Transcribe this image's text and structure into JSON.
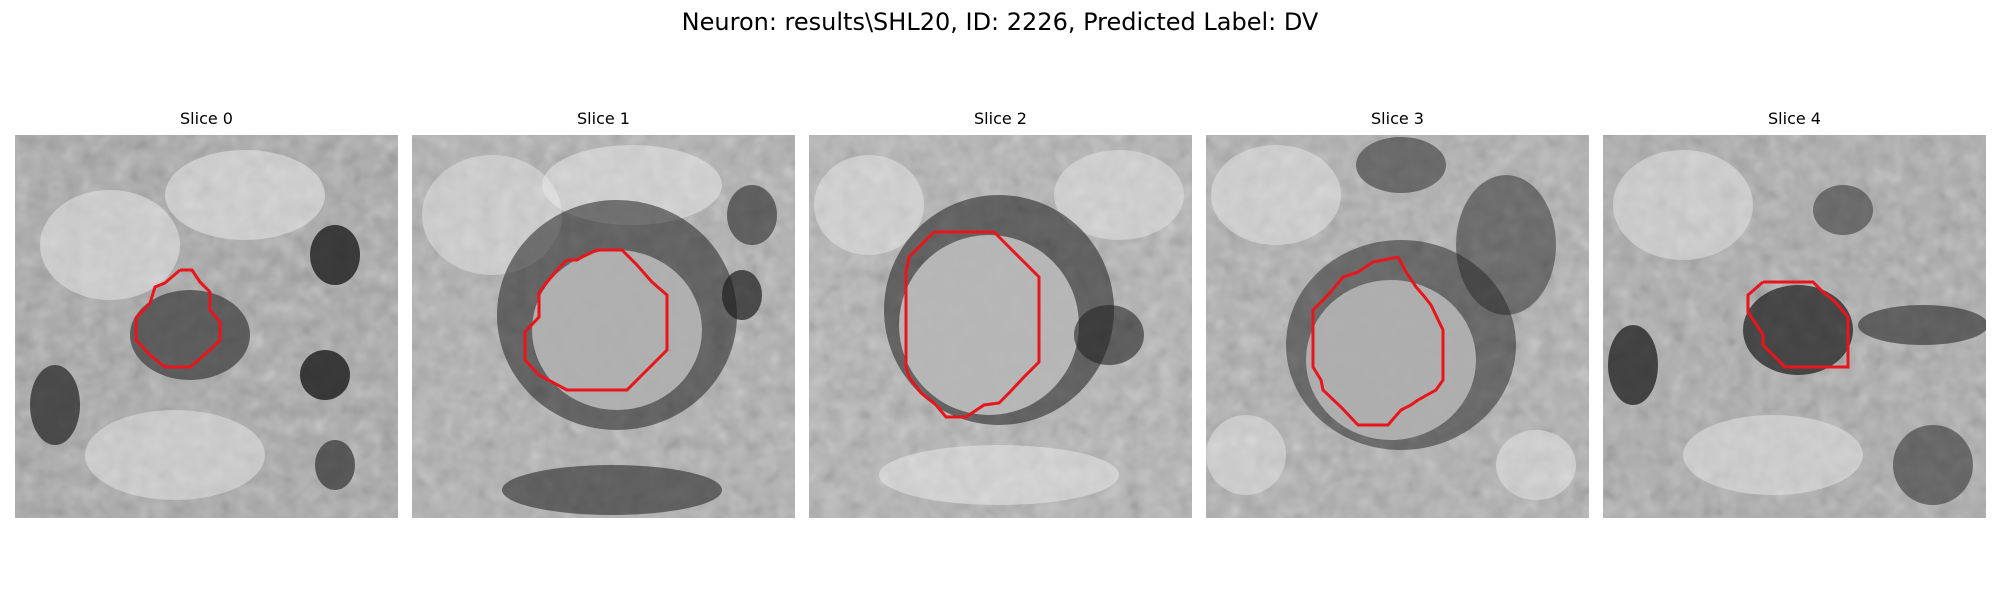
{
  "figure": {
    "title": "Neuron: results\\SHL20, ID: 2226, Predicted Label: DV"
  },
  "colors": {
    "contour": "#e8151b",
    "background": "#ffffff"
  },
  "panels": [
    {
      "title": "Slice 0"
    },
    {
      "title": "Slice 1"
    },
    {
      "title": "Slice 2"
    },
    {
      "title": "Slice 3"
    },
    {
      "title": "Slice 4"
    }
  ]
}
